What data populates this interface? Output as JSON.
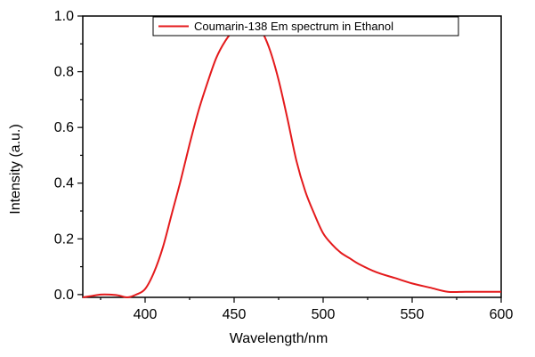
{
  "chart_data": {
    "type": "line",
    "xlabel": "Wavelength/nm",
    "ylabel": "Intensity (a.u.)",
    "xlim": [
      365,
      600
    ],
    "ylim": [
      -0.01,
      1.0
    ],
    "xticks": [
      400,
      450,
      500,
      550,
      600
    ],
    "xtick_labels": [
      "400",
      "450",
      "500",
      "550",
      "600"
    ],
    "yticks": [
      0.0,
      0.2,
      0.4,
      0.6,
      0.8,
      1.0
    ],
    "ytick_labels": [
      "0.0",
      "0.2",
      "0.4",
      "0.6",
      "0.8",
      "1.0"
    ],
    "legend_position": "top-center",
    "grid": false,
    "series": [
      {
        "name": "Coumarin-138 Em spectrum in Ethanol",
        "color": "#e41a1c",
        "x": [
          365,
          370,
          375,
          380,
          385,
          390,
          395,
          400,
          405,
          410,
          415,
          420,
          425,
          430,
          435,
          440,
          445,
          450,
          455,
          460,
          465,
          470,
          475,
          480,
          485,
          490,
          495,
          500,
          505,
          510,
          515,
          520,
          530,
          540,
          550,
          560,
          570,
          580,
          590,
          600
        ],
        "y": [
          -0.01,
          -0.005,
          0.0,
          0.0,
          -0.003,
          -0.01,
          0.0,
          0.02,
          0.08,
          0.17,
          0.29,
          0.41,
          0.54,
          0.66,
          0.76,
          0.85,
          0.91,
          0.95,
          0.97,
          0.97,
          0.95,
          0.88,
          0.77,
          0.63,
          0.48,
          0.37,
          0.29,
          0.22,
          0.18,
          0.15,
          0.13,
          0.11,
          0.08,
          0.06,
          0.04,
          0.025,
          0.01,
          0.01,
          0.01,
          0.01
        ]
      }
    ]
  }
}
